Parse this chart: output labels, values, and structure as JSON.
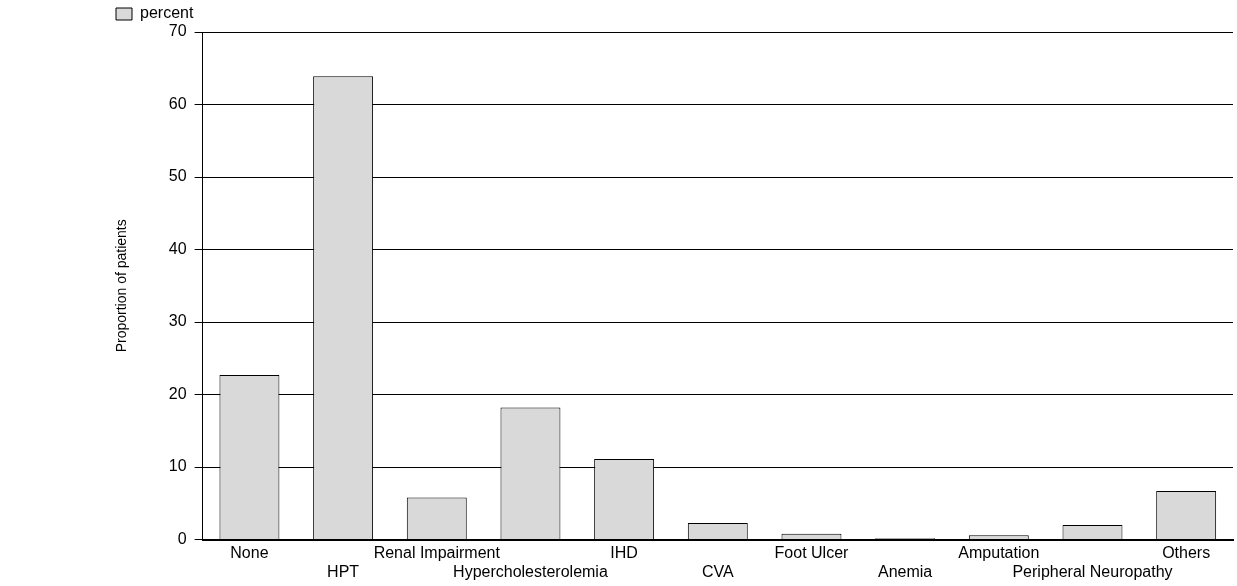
{
  "chart_data": {
    "type": "bar",
    "ylabel": "Proportion of patients",
    "categories": [
      "None",
      "HPT",
      "Renal Impairment",
      "Hypercholesterolemia",
      "IHD",
      "CVA",
      "Foot Ulcer",
      "Anemia",
      "Amputation",
      "Peripheral Neuropathy",
      "Others"
    ],
    "series": [
      {
        "name": "percent",
        "color": "#d9d9d9",
        "values": [
          22.7,
          63.9,
          5.8,
          18.2,
          11.1,
          2.3,
          0.8,
          0.2,
          0.6,
          2.0,
          6.7
        ]
      }
    ],
    "ylim": [
      0,
      70
    ],
    "yticks": [
      0,
      10,
      20,
      30,
      40,
      50,
      60,
      70
    ],
    "grid": "y",
    "legend": "top left"
  }
}
